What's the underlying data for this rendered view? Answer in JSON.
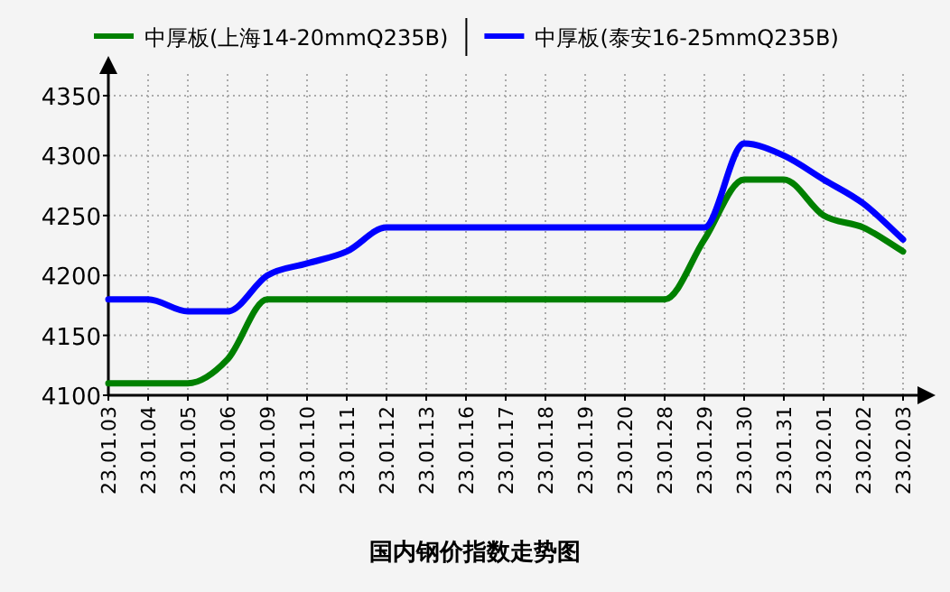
{
  "chart_data": {
    "type": "line",
    "title": "国内钢价指数走势图",
    "categories": [
      "23.01.03",
      "23.01.04",
      "23.01.05",
      "23.01.06",
      "23.01.09",
      "23.01.10",
      "23.01.11",
      "23.01.12",
      "23.01.13",
      "23.01.16",
      "23.01.17",
      "23.01.18",
      "23.01.19",
      "23.01.20",
      "23.01.28",
      "23.01.29",
      "23.01.30",
      "23.01.31",
      "23.02.01",
      "23.02.02",
      "23.02.03"
    ],
    "series": [
      {
        "name": "中厚板(上海14-20mmQ235B)",
        "color": "#008000",
        "values": [
          4110,
          4110,
          4110,
          4130,
          4180,
          4180,
          4180,
          4180,
          4180,
          4180,
          4180,
          4180,
          4180,
          4180,
          4180,
          4230,
          4280,
          4280,
          4250,
          4240,
          4220
        ]
      },
      {
        "name": "中厚板(泰安16-25mmQ235B)",
        "color": "#0000ff",
        "values": [
          4180,
          4180,
          4170,
          4170,
          4200,
          4210,
          4220,
          4240,
          4240,
          4240,
          4240,
          4240,
          4240,
          4240,
          4240,
          4240,
          4310,
          4300,
          4280,
          4260,
          4230
        ]
      }
    ],
    "ylim": [
      4100,
      4350
    ],
    "yticks": [
      4100,
      4150,
      4200,
      4250,
      4300,
      4350
    ],
    "grid": true,
    "legend": "top",
    "marker": "none",
    "line_style": "solid"
  }
}
